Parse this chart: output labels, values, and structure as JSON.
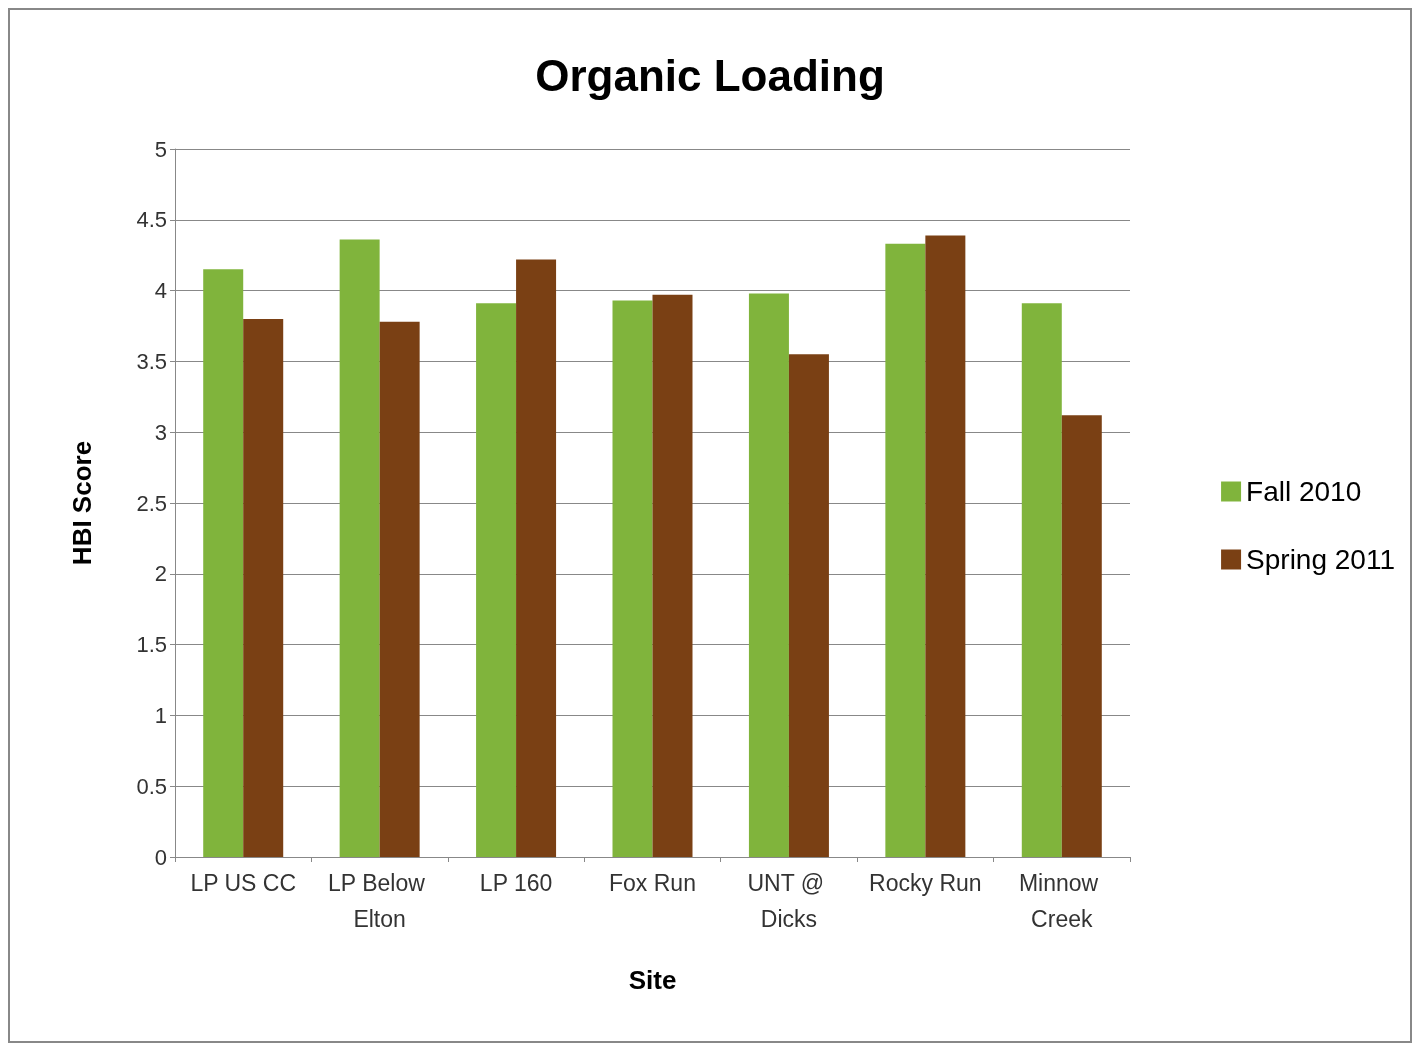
{
  "chart_data": {
    "type": "bar",
    "title": "Organic Loading",
    "xlabel": "Site",
    "ylabel": "HBI Score",
    "categories": [
      "LP US CC",
      "LP Below Elton",
      "LP 160",
      "Fox Run",
      "UNT @ Dicks",
      "Rocky Run",
      "Minnow Creek"
    ],
    "series": [
      {
        "name": "Fall 2010",
        "color": "#80b43c",
        "values": [
          4.15,
          4.36,
          3.91,
          3.93,
          3.98,
          4.33,
          3.91
        ]
      },
      {
        "name": "Spring 2011",
        "color": "#7a4014",
        "values": [
          3.8,
          3.78,
          4.22,
          3.97,
          3.55,
          4.39,
          3.12
        ]
      }
    ],
    "ylim": [
      0,
      5
    ],
    "yticks": [
      0,
      0.5,
      1,
      1.5,
      2,
      2.5,
      3,
      3.5,
      4,
      4.5,
      5
    ],
    "grid": "y",
    "legend": "right"
  }
}
